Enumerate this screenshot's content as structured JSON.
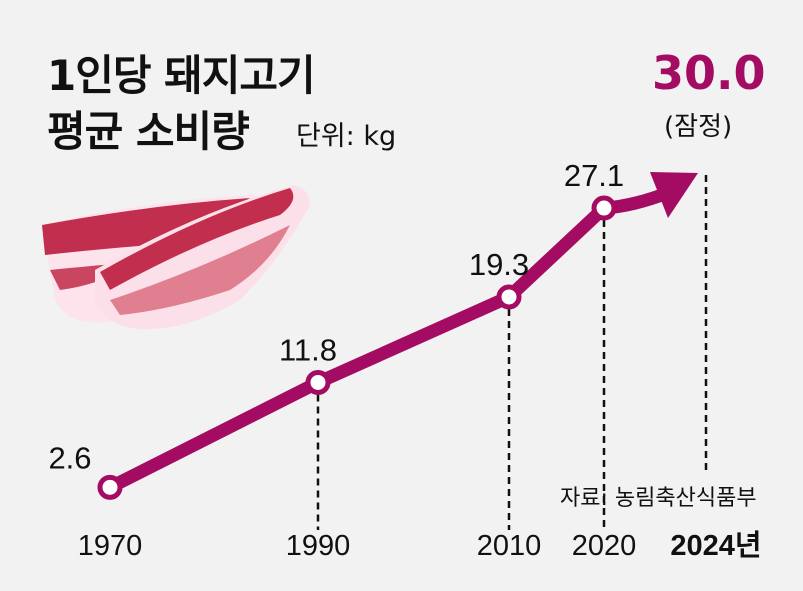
{
  "title_line1": "1인당 돼지고기",
  "title_line2": "평균 소비량",
  "unit": "단위: kg",
  "highlight_value": "30.0",
  "provisional": "(잠정)",
  "source": "자료: 농림축산식품부",
  "colors": {
    "line": "#a40b63",
    "background": "#f1f2f1"
  },
  "chart_data": {
    "type": "line",
    "title": "1인당 돼지고기 평균 소비량",
    "unit": "kg",
    "categories": [
      "1970",
      "1990",
      "2010",
      "2020",
      "2024년"
    ],
    "values": [
      2.6,
      11.8,
      19.3,
      27.1,
      30.0
    ],
    "value_labels": [
      "2.6",
      "11.8",
      "19.3",
      "27.1",
      "30.0"
    ],
    "last_point_provisional": true,
    "grid": false
  }
}
